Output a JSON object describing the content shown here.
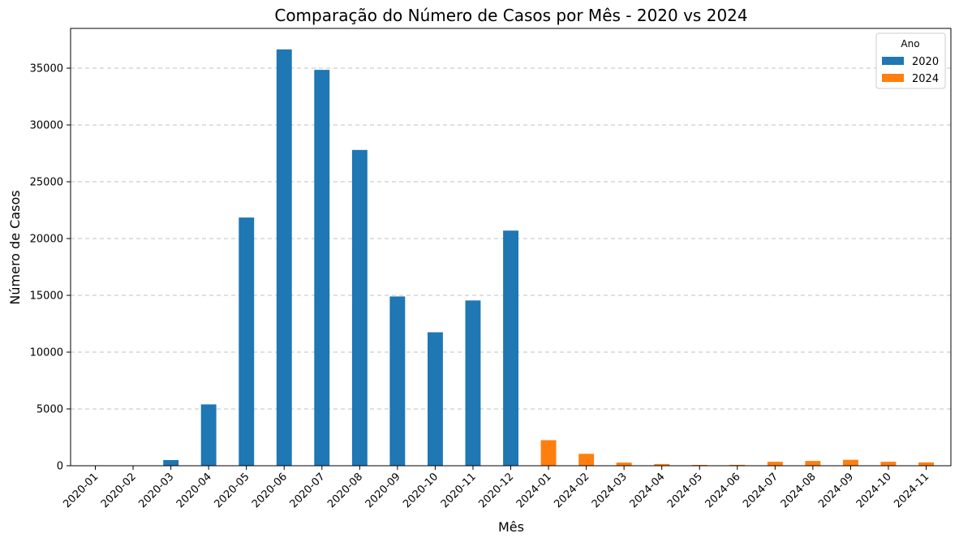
{
  "chart_data": {
    "type": "bar",
    "title": "Comparação do Número de Casos por Mês - 2020 vs 2024",
    "xlabel": "Mês",
    "ylabel": "Número de Casos",
    "ylim": [
      0,
      38500
    ],
    "yticks": [
      "0",
      "5000",
      "10000",
      "15000",
      "20000",
      "25000",
      "30000",
      "35000"
    ],
    "grid": "horizontal-dashed",
    "legend": {
      "title": "Ano",
      "placement": "top-right"
    },
    "categories": [
      "2020-01",
      "2020-02",
      "2020-03",
      "2020-04",
      "2020-05",
      "2020-06",
      "2020-07",
      "2020-08",
      "2020-09",
      "2020-10",
      "2020-11",
      "2020-12",
      "2024-01",
      "2024-02",
      "2024-03",
      "2024-04",
      "2024-05",
      "2024-06",
      "2024-07",
      "2024-08",
      "2024-09",
      "2024-10",
      "2024-11"
    ],
    "series": [
      {
        "name": "2020",
        "color": "#1f77b4",
        "values": [
          0,
          0,
          500,
          5400,
          21850,
          36650,
          34850,
          27800,
          14900,
          11750,
          14550,
          20700,
          null,
          null,
          null,
          null,
          null,
          null,
          null,
          null,
          null,
          null,
          null
        ]
      },
      {
        "name": "2024",
        "color": "#ff7f0e",
        "values": [
          null,
          null,
          null,
          null,
          null,
          null,
          null,
          null,
          null,
          null,
          null,
          null,
          2250,
          1050,
          280,
          150,
          70,
          80,
          350,
          420,
          520,
          350,
          290
        ]
      }
    ]
  }
}
